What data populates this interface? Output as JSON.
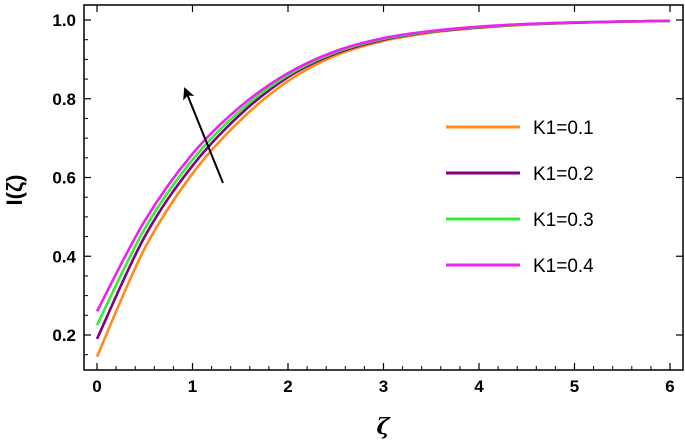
{
  "chart_data": {
    "type": "line",
    "title": "",
    "xlabel": "ζ",
    "ylabel": "I(ζ)",
    "xlim": [
      0,
      6
    ],
    "ylim": [
      0.1,
      1.03
    ],
    "xticks": [
      "0",
      "1",
      "2",
      "3",
      "4",
      "5",
      "6"
    ],
    "yticks": [
      "0.2",
      "0.4",
      "0.6",
      "0.8",
      "1.0"
    ],
    "grid": false,
    "legend_position": "right",
    "annotation": "arrow indicating increase with K1",
    "series": [
      {
        "name": "K1=0.1",
        "color": "#FF8C1A",
        "x": [
          0,
          0.5,
          1,
          1.5,
          2,
          2.5,
          3,
          3.5,
          4,
          4.5,
          5,
          5.5,
          6
        ],
        "y": [
          0.145,
          0.42,
          0.61,
          0.745,
          0.845,
          0.91,
          0.947,
          0.968,
          0.98,
          0.988,
          0.993,
          0.996,
          0.998
        ]
      },
      {
        "name": "K1=0.2",
        "color": "#800080",
        "x": [
          0,
          0.5,
          1,
          1.5,
          2,
          2.5,
          3,
          3.5,
          4,
          4.5,
          5,
          5.5,
          6
        ],
        "y": [
          0.19,
          0.45,
          0.63,
          0.76,
          0.855,
          0.915,
          0.95,
          0.97,
          0.981,
          0.989,
          0.993,
          0.996,
          0.998
        ]
      },
      {
        "name": "K1=0.3",
        "color": "#33EE33",
        "x": [
          0,
          0.5,
          1,
          1.5,
          2,
          2.5,
          3,
          3.5,
          4,
          4.5,
          5,
          5.5,
          6
        ],
        "y": [
          0.225,
          0.47,
          0.645,
          0.77,
          0.86,
          0.918,
          0.952,
          0.971,
          0.982,
          0.989,
          0.994,
          0.996,
          0.998
        ]
      },
      {
        "name": "K1=0.4",
        "color": "#EE22EE",
        "x": [
          0,
          0.5,
          1,
          1.5,
          2,
          2.5,
          3,
          3.5,
          4,
          4.5,
          5,
          5.5,
          6
        ],
        "y": [
          0.26,
          0.49,
          0.66,
          0.78,
          0.865,
          0.921,
          0.954,
          0.972,
          0.983,
          0.99,
          0.994,
          0.996,
          0.998
        ]
      }
    ]
  }
}
